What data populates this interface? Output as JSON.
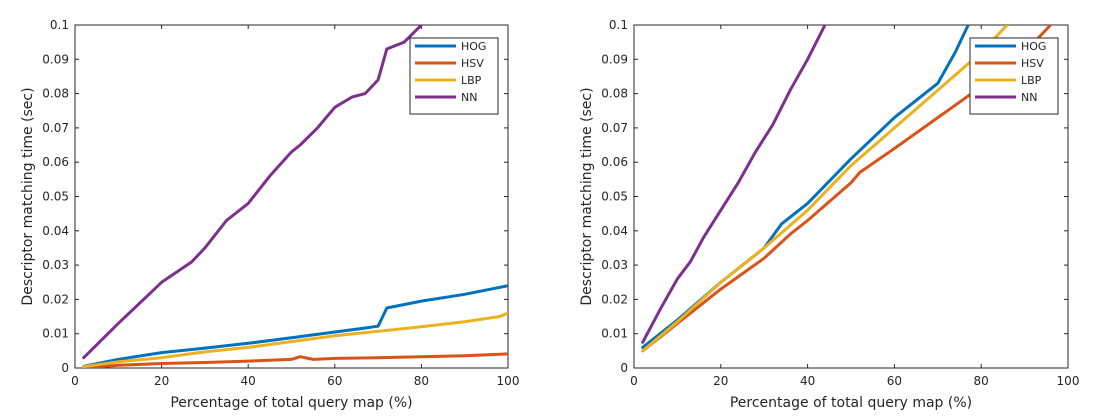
{
  "figure": {
    "colors": {
      "HOG": "#0072bd",
      "HSV": "#d95319",
      "LBP": "#edb120",
      "NN": "#7e2f8e"
    }
  },
  "chart_data": [
    {
      "type": "line",
      "xlabel": "Percentage of total query map (%)",
      "ylabel": "Descriptor matching time (sec)",
      "xlim": [
        0,
        100
      ],
      "ylim": [
        0,
        0.1
      ],
      "xticks": [
        0,
        20,
        40,
        60,
        80,
        100
      ],
      "yticks": [
        0,
        0.01,
        0.02,
        0.03,
        0.04,
        0.05,
        0.06,
        0.07,
        0.08,
        0.09,
        0.1
      ],
      "legend_position": "top-right",
      "grid": false,
      "series": [
        {
          "name": "HOG",
          "x": [
            2,
            10,
            20,
            30,
            40,
            50,
            60,
            66,
            70,
            72,
            80,
            90,
            100
          ],
          "y": [
            0.0005,
            0.0025,
            0.0045,
            0.0058,
            0.0072,
            0.0088,
            0.0105,
            0.0115,
            0.0122,
            0.0175,
            0.0195,
            0.0215,
            0.024
          ]
        },
        {
          "name": "HSV",
          "x": [
            2,
            10,
            20,
            30,
            40,
            50,
            52,
            55,
            60,
            70,
            80,
            90,
            100
          ],
          "y": [
            0.0001,
            0.0008,
            0.0013,
            0.0016,
            0.002,
            0.0025,
            0.0033,
            0.0025,
            0.0028,
            0.003,
            0.0033,
            0.0036,
            0.0041
          ]
        },
        {
          "name": "LBP",
          "x": [
            2,
            10,
            20,
            30,
            40,
            50,
            60,
            70,
            80,
            90,
            98,
            100
          ],
          "y": [
            0.0004,
            0.0018,
            0.003,
            0.0047,
            0.006,
            0.0077,
            0.0094,
            0.0107,
            0.012,
            0.0135,
            0.015,
            0.016
          ]
        },
        {
          "name": "NN",
          "x": [
            2,
            10,
            20,
            27,
            30,
            35,
            40,
            45,
            50,
            52,
            56,
            60,
            64,
            67,
            70,
            72,
            76,
            80
          ],
          "y": [
            0.003,
            0.013,
            0.025,
            0.031,
            0.035,
            0.043,
            0.048,
            0.056,
            0.063,
            0.065,
            0.07,
            0.076,
            0.079,
            0.08,
            0.084,
            0.093,
            0.095,
            0.1
          ]
        }
      ]
    },
    {
      "type": "line",
      "xlabel": "Percentage of total query map (%)",
      "ylabel": "Descriptor matching time (sec)",
      "xlim": [
        0,
        100
      ],
      "ylim": [
        0,
        0.1
      ],
      "xticks": [
        0,
        20,
        40,
        60,
        80,
        100
      ],
      "yticks": [
        0,
        0.01,
        0.02,
        0.03,
        0.04,
        0.05,
        0.06,
        0.07,
        0.08,
        0.09,
        0.1
      ],
      "legend_position": "top-right",
      "grid": false,
      "series": [
        {
          "name": "HOG",
          "x": [
            2,
            10,
            20,
            30,
            34,
            40,
            50,
            60,
            70,
            74,
            77
          ],
          "y": [
            0.006,
            0.014,
            0.025,
            0.035,
            0.042,
            0.048,
            0.061,
            0.073,
            0.083,
            0.092,
            0.1
          ]
        },
        {
          "name": "HSV",
          "x": [
            2,
            10,
            20,
            30,
            36,
            40,
            50,
            52,
            60,
            70,
            80,
            90,
            96
          ],
          "y": [
            0.005,
            0.013,
            0.023,
            0.032,
            0.039,
            0.043,
            0.054,
            0.057,
            0.064,
            0.073,
            0.082,
            0.092,
            0.1
          ]
        },
        {
          "name": "LBP",
          "x": [
            2,
            10,
            20,
            30,
            40,
            50,
            60,
            70,
            80,
            86
          ],
          "y": [
            0.005,
            0.0135,
            0.025,
            0.035,
            0.046,
            0.059,
            0.07,
            0.081,
            0.092,
            0.1
          ]
        },
        {
          "name": "NN",
          "x": [
            2,
            6,
            10,
            13,
            16,
            20,
            24,
            28,
            32,
            36,
            40,
            44
          ],
          "y": [
            0.0075,
            0.017,
            0.026,
            0.031,
            0.038,
            0.046,
            0.054,
            0.063,
            0.071,
            0.081,
            0.09,
            0.1
          ]
        }
      ]
    }
  ]
}
